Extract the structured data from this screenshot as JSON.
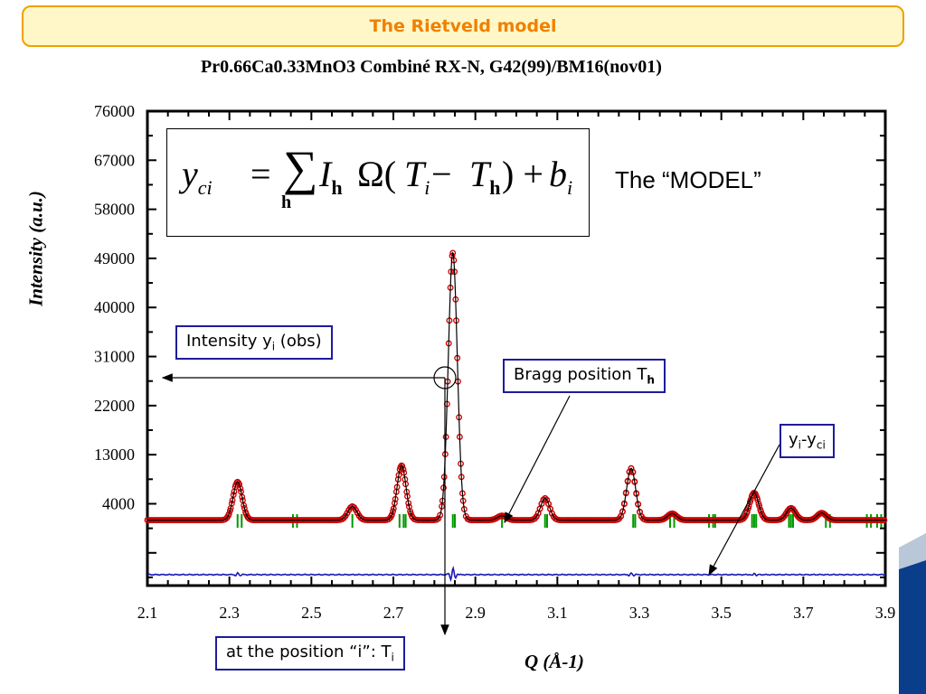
{
  "slide": {
    "banner_title": "The Rietveld model",
    "model_label": "The “MODEL”"
  },
  "formula": {
    "lhs_y": "y",
    "lhs_sub": "ci",
    "equals": "=",
    "sum": "∑",
    "sum_index": "h",
    "term_I": "I",
    "term_I_sub": "h",
    "term_omega": "Ω(",
    "term_T": "T",
    "term_T_sub": "i",
    "minus": " −",
    "term_Th": "T",
    "term_Th_sub": "h",
    "close_plus": ") +",
    "term_b": "b",
    "term_b_sub": "i"
  },
  "callouts": {
    "intensity_text": "Intensity y",
    "intensity_sub": "i",
    "intensity_suffix": " (obs)",
    "bragg_text": "Bragg position T",
    "bragg_sub": "h",
    "diff_y1": "y",
    "diff_sub1": "i",
    "diff_dash": "-y",
    "diff_sub2": "ci",
    "position_text": "at the position “i”: T",
    "position_sub": "i"
  },
  "colors": {
    "observed": "#cc0000",
    "calculated": "#000000",
    "bragg_ticks": "#009900",
    "difference": "#1a1ab4",
    "callout_border": "#1c1c9c",
    "banner_border": "#f0a000",
    "banner_fill": "#fff7c8",
    "banner_text": "#f08000"
  },
  "chart_data": {
    "type": "line",
    "title": "Pr0.66Ca0.33MnO3 Combiné RX-N, G42(99)/BM16(nov01)",
    "xlabel": "Q (Å-1)",
    "ylabel": "Intensity (a.u.)",
    "xlim": [
      2.1,
      3.9
    ],
    "ylim": [
      -11000,
      76000
    ],
    "x_ticks": [
      "2.1",
      "2.3",
      "2.5",
      "2.7",
      "2.9",
      "3.1",
      "3.3",
      "3.5",
      "3.7",
      "3.9"
    ],
    "y_ticks": [
      "4000",
      "13000",
      "22000",
      "31000",
      "40000",
      "49000",
      "58000",
      "67000",
      "76000"
    ],
    "background": 1000,
    "peaks": [
      {
        "x": 2.32,
        "height": 7000
      },
      {
        "x": 2.6,
        "height": 2500
      },
      {
        "x": 2.72,
        "height": 10000
      },
      {
        "x": 2.845,
        "height": 49000
      },
      {
        "x": 2.965,
        "height": 800
      },
      {
        "x": 3.07,
        "height": 4000
      },
      {
        "x": 3.28,
        "height": 9500
      },
      {
        "x": 3.38,
        "height": 1200
      },
      {
        "x": 3.58,
        "height": 5000
      },
      {
        "x": 3.67,
        "height": 2200
      },
      {
        "x": 3.745,
        "height": 1300
      }
    ],
    "peak_width": 0.011,
    "bragg_positions": [
      2.32,
      2.33,
      2.455,
      2.465,
      2.6,
      2.715,
      2.725,
      2.73,
      2.845,
      2.85,
      2.965,
      3.07,
      3.075,
      3.285,
      3.29,
      3.375,
      3.385,
      3.47,
      3.48,
      3.485,
      3.575,
      3.58,
      3.585,
      3.665,
      3.67,
      3.675,
      3.755,
      3.765,
      3.855,
      3.865,
      3.88,
      3.89
    ],
    "difference_offset": -9000,
    "difference_features": [
      {
        "x": 2.32,
        "amplitude": 300
      },
      {
        "x": 2.845,
        "amplitude": 1200
      },
      {
        "x": 3.28,
        "amplitude": 300
      },
      {
        "x": 3.58,
        "amplitude": 250
      }
    ],
    "series": [
      {
        "role": "observed",
        "marker": "circle"
      },
      {
        "role": "calculated",
        "marker": "line"
      },
      {
        "role": "bragg_positions",
        "marker": "tick"
      },
      {
        "role": "difference",
        "marker": "line"
      }
    ]
  }
}
